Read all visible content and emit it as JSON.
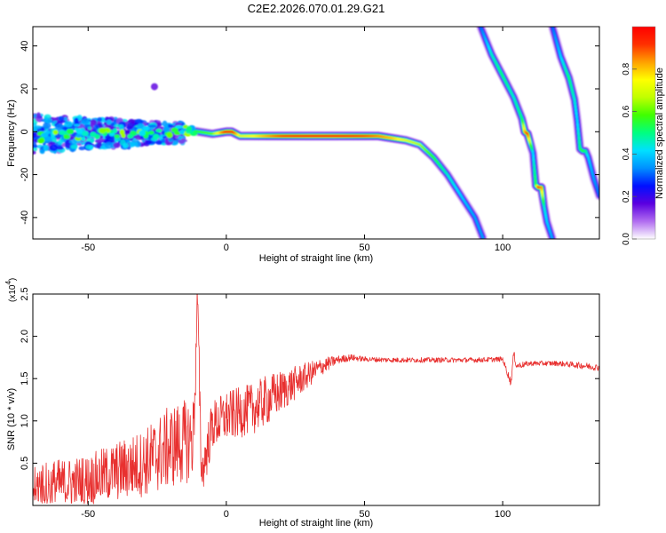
{
  "title": "C2E2.2026.070.01.29.G21",
  "colors": {
    "snr_line": "#e8302f",
    "background": "#ffffff"
  },
  "colorbar": {
    "label": "Normalized spectral amplitude",
    "range": [
      0,
      1
    ],
    "ticks": [
      0.0,
      0.2,
      0.4,
      0.6,
      0.8
    ],
    "tick_labels": [
      "0.0",
      "0.2",
      "0.4",
      "0.6",
      "0.8"
    ],
    "colormap": [
      "#ffffff",
      "#b06cf0",
      "#5a00e0",
      "#0010ff",
      "#0090ff",
      "#00e0ff",
      "#00ff80",
      "#40ff00",
      "#c0ff00",
      "#ffff00",
      "#ffa000",
      "#ff3000",
      "#ff0000"
    ]
  },
  "chart_data": [
    {
      "type": "heatmap",
      "title": "C2E2.2026.070.01.29.G21",
      "xlabel": "Height of straight line (km)",
      "ylabel": "Frequency (Hz)",
      "xlim": [
        -70,
        135
      ],
      "ylim": [
        -50,
        49
      ],
      "xticks": [
        -50,
        0,
        50,
        100
      ],
      "xtick_labels": [
        "-50",
        "0",
        "50",
        "100"
      ],
      "yticks": [
        -40,
        -20,
        0,
        20,
        40
      ],
      "ytick_labels": [
        "-40",
        "-20",
        "0",
        "20",
        "40"
      ],
      "traces": [
        {
          "name": "main doppler track",
          "x": [
            -70,
            -60,
            -50,
            -40,
            -30,
            -20,
            -15,
            -10,
            -5,
            0,
            2,
            5,
            10,
            20,
            30,
            40,
            50,
            55,
            60,
            65,
            70,
            75,
            80,
            85,
            90,
            93
          ],
          "y": [
            -3,
            -2,
            -1.5,
            -1,
            -0.5,
            0,
            1,
            0,
            -1,
            0,
            0,
            -2,
            -2,
            -2,
            -2,
            -2,
            -2,
            -2,
            -3,
            -4,
            -6,
            -12,
            -20,
            -30,
            -40,
            -50
          ],
          "amplitude": [
            0.3,
            0.3,
            0.35,
            0.35,
            0.4,
            0.4,
            0.45,
            0.55,
            0.6,
            0.95,
            0.95,
            0.7,
            0.75,
            0.9,
            0.95,
            0.95,
            0.9,
            0.85,
            0.8,
            0.7,
            0.65,
            0.55,
            0.45,
            0.4,
            0.35,
            0.35
          ]
        },
        {
          "name": "steep track 1",
          "x": [
            92,
            96,
            100,
            104,
            107,
            108,
            109,
            111,
            112,
            113,
            114,
            115,
            116,
            118
          ],
          "y": [
            49,
            36,
            26,
            16,
            6,
            0,
            -1,
            -10,
            -25,
            -26,
            -26,
            -35,
            -42,
            -50
          ],
          "amplitude": [
            0.3,
            0.45,
            0.5,
            0.45,
            0.5,
            0.8,
            0.9,
            0.4,
            0.55,
            0.9,
            0.85,
            0.45,
            0.4,
            0.35
          ]
        },
        {
          "name": "steep track 2",
          "x": [
            118,
            121,
            124,
            126,
            127,
            128,
            129,
            130,
            131,
            133,
            135
          ],
          "y": [
            49,
            35,
            25,
            15,
            5,
            -8,
            -9,
            -9,
            -12,
            -22,
            -30
          ],
          "amplitude": [
            0.3,
            0.4,
            0.5,
            0.45,
            0.4,
            0.5,
            0.55,
            0.5,
            0.4,
            0.35,
            0.3
          ]
        }
      ],
      "scatter_noise": {
        "x_range": [
          -70,
          -15
        ],
        "y_range": [
          -10,
          8
        ],
        "outlier": {
          "x": -26,
          "y": 21
        }
      }
    },
    {
      "type": "line",
      "xlabel": "Height of straight line (km)",
      "ylabel": "SNR (10 * v/v)",
      "scale_label": "(x10",
      "scale_exponent": "4",
      "xlim": [
        -70,
        135
      ],
      "ylim": [
        0,
        2.5
      ],
      "xticks": [
        -50,
        0,
        50,
        100
      ],
      "xtick_labels": [
        "-50",
        "0",
        "50",
        "100"
      ],
      "yticks": [
        0.5,
        1.0,
        1.5,
        2.0,
        2.5
      ],
      "ytick_labels": [
        "0.5",
        "1.0",
        "1.5",
        "2.0",
        "2.5"
      ],
      "series": [
        {
          "name": "SNR",
          "x": [
            -70,
            -60,
            -50,
            -40,
            -30,
            -25,
            -20,
            -15,
            -12,
            -11,
            -10.5,
            -10,
            -9.5,
            -9,
            -8,
            -5,
            0,
            5,
            10,
            15,
            20,
            25,
            30,
            35,
            40,
            45,
            50,
            60,
            70,
            80,
            90,
            100,
            103,
            104,
            105,
            110,
            120,
            130,
            135
          ],
          "y": [
            0.2,
            0.25,
            0.3,
            0.4,
            0.5,
            0.6,
            0.7,
            0.75,
            0.8,
            1.7,
            2.55,
            1.9,
            1.0,
            0.4,
            0.5,
            0.95,
            1.05,
            1.1,
            1.15,
            1.25,
            1.35,
            1.45,
            1.55,
            1.65,
            1.72,
            1.75,
            1.73,
            1.72,
            1.72,
            1.72,
            1.72,
            1.73,
            1.45,
            1.8,
            1.65,
            1.68,
            1.68,
            1.65,
            1.63
          ],
          "noise_envelope": [
            0.35,
            0.3,
            0.3,
            0.35,
            0.4,
            0.45,
            0.5,
            0.5,
            0.5,
            0.3,
            0.1,
            0.3,
            0.35,
            0.2,
            0.3,
            0.3,
            0.3,
            0.3,
            0.3,
            0.3,
            0.25,
            0.2,
            0.15,
            0.1,
            0.05,
            0.04,
            0.03,
            0.03,
            0.03,
            0.03,
            0.03,
            0.03,
            0.05,
            0.05,
            0.04,
            0.03,
            0.03,
            0.04,
            0.04
          ]
        }
      ]
    }
  ]
}
